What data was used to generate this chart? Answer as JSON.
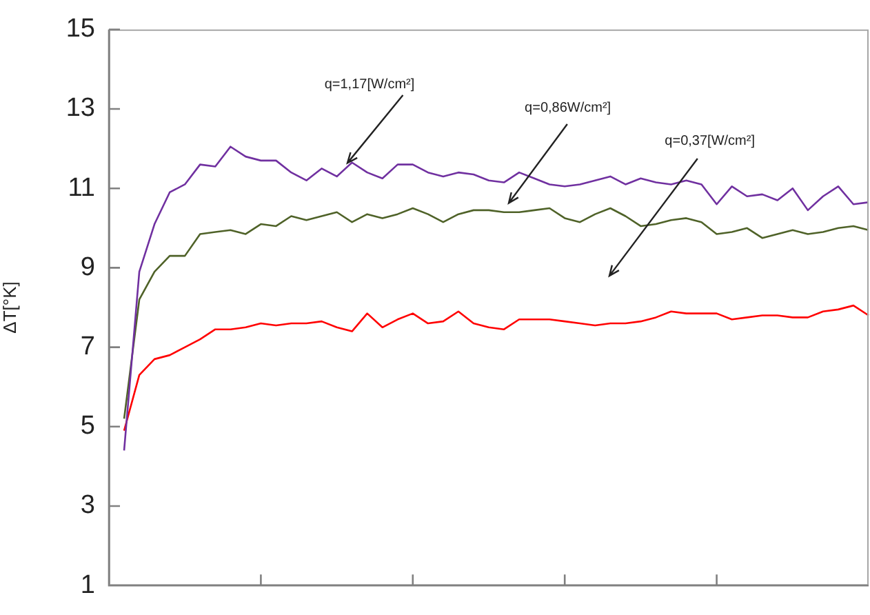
{
  "chart_data": {
    "type": "line",
    "ylabel": "ΔT[°K]",
    "tick_labels": "y",
    "grid": false,
    "legend": false,
    "marker": "none",
    "line_style": "solid",
    "categories": [
      null,
      null,
      null,
      null,
      null,
      null,
      null,
      null,
      null,
      null,
      null,
      null,
      null,
      null,
      null,
      null,
      null,
      null,
      null,
      null,
      null,
      null,
      null,
      null,
      null,
      null,
      null,
      null,
      null,
      null,
      null,
      null,
      null,
      null,
      null,
      null,
      null,
      null,
      null,
      null,
      null,
      null,
      null,
      null,
      null,
      null,
      null,
      null,
      null,
      null,
      null
    ],
    "ylim": [
      1,
      15
    ],
    "yticks": [
      1,
      3,
      5,
      7,
      9,
      11,
      13,
      15
    ],
    "series": [
      {
        "color": "#7030a0",
        "values": [
          null,
          4.4,
          8.9,
          10.1,
          10.9,
          11.1,
          11.6,
          11.55,
          12.05,
          11.8,
          11.7,
          11.7,
          11.4,
          11.2,
          11.5,
          11.3,
          11.65,
          11.4,
          11.25,
          11.6,
          11.6,
          11.4,
          11.3,
          11.4,
          11.35,
          11.2,
          11.15,
          11.4,
          11.25,
          11.1,
          11.05,
          11.1,
          11.2,
          11.3,
          11.1,
          11.25,
          11.15,
          11.1,
          11.2,
          11.1,
          10.6,
          11.05,
          10.8,
          10.85,
          10.7,
          11.0,
          10.45,
          10.8,
          11.05,
          10.6,
          10.65
        ]
      },
      {
        "color": "#4f6228",
        "values": [
          null,
          5.2,
          8.2,
          8.9,
          9.3,
          9.3,
          9.85,
          9.9,
          9.95,
          9.85,
          10.1,
          10.05,
          10.3,
          10.2,
          10.3,
          10.4,
          10.15,
          10.35,
          10.25,
          10.35,
          10.5,
          10.35,
          10.15,
          10.35,
          10.45,
          10.45,
          10.4,
          10.4,
          10.45,
          10.5,
          10.25,
          10.15,
          10.35,
          10.5,
          10.3,
          10.05,
          10.1,
          10.2,
          10.25,
          10.15,
          9.85,
          9.9,
          10.0,
          9.75,
          9.85,
          9.95,
          9.85,
          9.9,
          10.0,
          10.05,
          9.95
        ]
      },
      {
        "color": "#ff0000",
        "values": [
          null,
          4.9,
          6.3,
          6.7,
          6.8,
          7.0,
          7.2,
          7.45,
          7.45,
          7.5,
          7.6,
          7.55,
          7.6,
          7.6,
          7.65,
          7.5,
          7.4,
          7.85,
          7.5,
          7.7,
          7.85,
          7.6,
          7.65,
          7.9,
          7.6,
          7.5,
          7.45,
          7.7,
          7.7,
          7.7,
          7.65,
          7.6,
          7.55,
          7.6,
          7.6,
          7.65,
          7.75,
          7.9,
          7.85,
          7.85,
          7.85,
          7.7,
          7.75,
          7.8,
          7.8,
          7.75,
          7.75,
          7.9,
          7.95,
          8.05,
          7.8
        ]
      }
    ],
    "annotations": [
      "q=1,17[W/cm²]",
      "q=0,86W/cm²]",
      "q=0,37[W/cm²]"
    ]
  }
}
